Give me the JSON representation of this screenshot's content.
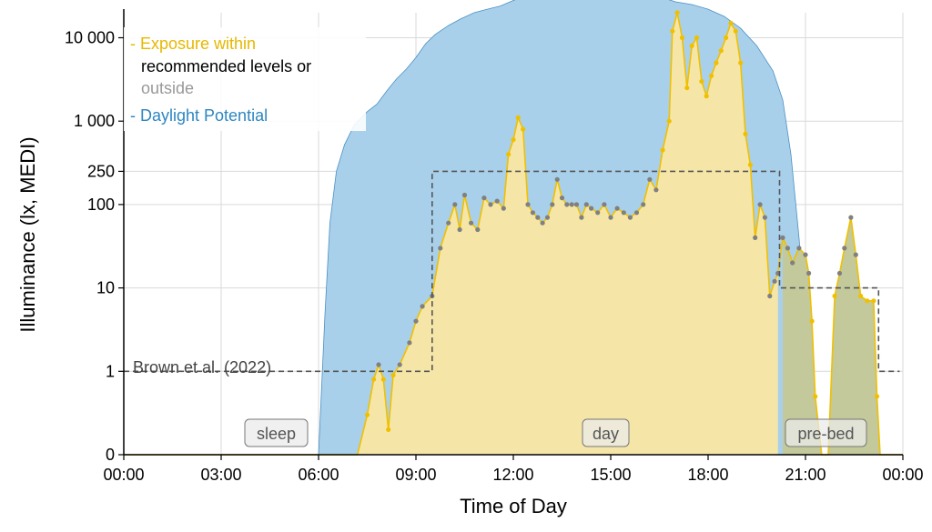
{
  "chart_data": {
    "type": "area",
    "xlabel": "Time of Day",
    "ylabel": "Illuminance (lx, MEDI)",
    "x_ticks": [
      "00:00",
      "03:00",
      "06:00",
      "09:00",
      "12:00",
      "15:00",
      "18:00",
      "21:00",
      "00:00"
    ],
    "y_ticks": [
      "0",
      "1",
      "10",
      "100",
      "250",
      "1 000",
      "10 000"
    ],
    "y_tick_values": [
      0,
      1,
      10,
      100,
      250,
      1000,
      10000
    ],
    "xlim": [
      0,
      24
    ],
    "ylim_log10": [
      -1,
      4.3
    ],
    "grid": true,
    "legend_position": "top-left",
    "legend": {
      "exposure_line1": "- Exposure within",
      "exposure_line2": "recommended levels or",
      "exposure_line3": "outside",
      "daylight": "- Daylight Potential"
    },
    "phase_labels": {
      "sleep": "sleep",
      "day": "day",
      "prebed": "pre-bed"
    },
    "reference": {
      "label": "Brown et al. (2022)",
      "segments": [
        {
          "from": 0,
          "to": 9.5,
          "value": 1
        },
        {
          "from": 9.5,
          "to": 20.2,
          "value": 250
        },
        {
          "from": 20.2,
          "to": 23.25,
          "value": 10
        },
        {
          "from": 23.25,
          "to": 23.9,
          "value": 1
        }
      ]
    },
    "colors": {
      "daylight_fill": "#a9d0ea",
      "daylight_line": "#4a90c4",
      "exposure_fill": "#f5e6a8",
      "exposure_line": "#f0c000",
      "outside_point": "#808080",
      "prebed_fill": "#c3c99a",
      "reference_line": "#555555",
      "legend_exposure": "#e6b800",
      "legend_outside": "#999999",
      "legend_daylight": "#2e86c1"
    },
    "series": [
      {
        "name": "Daylight Potential",
        "points": [
          [
            0,
            0
          ],
          [
            5.6,
            0
          ],
          [
            6.0,
            0
          ],
          [
            6.2,
            5
          ],
          [
            6.35,
            60
          ],
          [
            6.55,
            250
          ],
          [
            6.8,
            520
          ],
          [
            7.1,
            900
          ],
          [
            7.5,
            1300
          ],
          [
            7.8,
            1600
          ],
          [
            8.1,
            2300
          ],
          [
            8.4,
            3200
          ],
          [
            8.7,
            4200
          ],
          [
            9.0,
            5800
          ],
          [
            9.3,
            8500
          ],
          [
            9.6,
            11000
          ],
          [
            10.0,
            14000
          ],
          [
            10.4,
            17000
          ],
          [
            10.8,
            20000
          ],
          [
            11.2,
            22000
          ],
          [
            11.6,
            24000
          ],
          [
            12.0,
            28000
          ],
          [
            12.5,
            33000
          ],
          [
            13.0,
            36000
          ],
          [
            13.5,
            34000
          ],
          [
            14.0,
            33000
          ],
          [
            14.5,
            31000
          ],
          [
            15.0,
            32000
          ],
          [
            15.5,
            33000
          ],
          [
            16.0,
            34000
          ],
          [
            16.5,
            31000
          ],
          [
            17.0,
            27000
          ],
          [
            17.5,
            25000
          ],
          [
            18.0,
            22000
          ],
          [
            18.5,
            18000
          ],
          [
            19.0,
            13000
          ],
          [
            19.5,
            8000
          ],
          [
            20.0,
            4000
          ],
          [
            20.3,
            1800
          ],
          [
            20.55,
            400
          ],
          [
            20.8,
            40
          ],
          [
            21.0,
            4
          ],
          [
            21.2,
            0.4
          ],
          [
            21.5,
            0
          ],
          [
            24,
            0
          ]
        ]
      },
      {
        "name": "Exposure",
        "points": [
          [
            0,
            0
          ],
          [
            7.0,
            0
          ],
          [
            7.2,
            0
          ],
          [
            7.5,
            0.3
          ],
          [
            7.7,
            0.8
          ],
          [
            7.85,
            1.2
          ],
          [
            8.0,
            0.8
          ],
          [
            8.15,
            0.2
          ],
          [
            8.3,
            0.9
          ],
          [
            8.5,
            1.2
          ],
          [
            8.8,
            2.2
          ],
          [
            9.0,
            4
          ],
          [
            9.2,
            6
          ],
          [
            9.5,
            8
          ],
          [
            9.75,
            30
          ],
          [
            10.0,
            60
          ],
          [
            10.2,
            100
          ],
          [
            10.35,
            50
          ],
          [
            10.5,
            130
          ],
          [
            10.7,
            60
          ],
          [
            10.9,
            50
          ],
          [
            11.1,
            120
          ],
          [
            11.3,
            100
          ],
          [
            11.5,
            110
          ],
          [
            11.7,
            90
          ],
          [
            11.85,
            400
          ],
          [
            12.0,
            600
          ],
          [
            12.15,
            1100
          ],
          [
            12.3,
            800
          ],
          [
            12.45,
            100
          ],
          [
            12.6,
            80
          ],
          [
            12.75,
            70
          ],
          [
            12.9,
            60
          ],
          [
            13.05,
            70
          ],
          [
            13.2,
            100
          ],
          [
            13.35,
            200
          ],
          [
            13.5,
            120
          ],
          [
            13.65,
            100
          ],
          [
            13.8,
            100
          ],
          [
            13.95,
            100
          ],
          [
            14.1,
            70
          ],
          [
            14.25,
            100
          ],
          [
            14.4,
            90
          ],
          [
            14.6,
            80
          ],
          [
            14.8,
            100
          ],
          [
            15.0,
            70
          ],
          [
            15.2,
            90
          ],
          [
            15.4,
            80
          ],
          [
            15.6,
            70
          ],
          [
            15.8,
            80
          ],
          [
            16.0,
            100
          ],
          [
            16.2,
            200
          ],
          [
            16.4,
            150
          ],
          [
            16.6,
            450
          ],
          [
            16.8,
            1000
          ],
          [
            16.9,
            12000
          ],
          [
            17.05,
            20000
          ],
          [
            17.2,
            10000
          ],
          [
            17.35,
            2500
          ],
          [
            17.5,
            8000
          ],
          [
            17.65,
            10000
          ],
          [
            17.8,
            3000
          ],
          [
            17.95,
            2000
          ],
          [
            18.1,
            3500
          ],
          [
            18.25,
            5000
          ],
          [
            18.4,
            7000
          ],
          [
            18.55,
            10000
          ],
          [
            18.7,
            15000
          ],
          [
            18.85,
            12000
          ],
          [
            19.0,
            5000
          ],
          [
            19.15,
            700
          ],
          [
            19.3,
            300
          ],
          [
            19.45,
            40
          ],
          [
            19.6,
            100
          ],
          [
            19.75,
            70
          ],
          [
            19.9,
            8
          ],
          [
            20.05,
            12
          ],
          [
            20.15,
            15
          ],
          [
            20.3,
            40
          ],
          [
            20.45,
            30
          ],
          [
            20.6,
            20
          ],
          [
            20.8,
            30
          ],
          [
            21.0,
            25
          ],
          [
            21.1,
            15
          ],
          [
            21.2,
            4
          ],
          [
            21.3,
            0.5
          ],
          [
            21.5,
            0
          ],
          [
            21.7,
            0
          ],
          [
            21.9,
            8
          ],
          [
            22.05,
            15
          ],
          [
            22.2,
            30
          ],
          [
            22.4,
            70
          ],
          [
            22.55,
            25
          ],
          [
            22.7,
            8
          ],
          [
            22.9,
            7
          ],
          [
            23.1,
            7
          ],
          [
            23.2,
            0.5
          ],
          [
            23.3,
            0
          ],
          [
            24,
            0
          ]
        ]
      }
    ]
  }
}
